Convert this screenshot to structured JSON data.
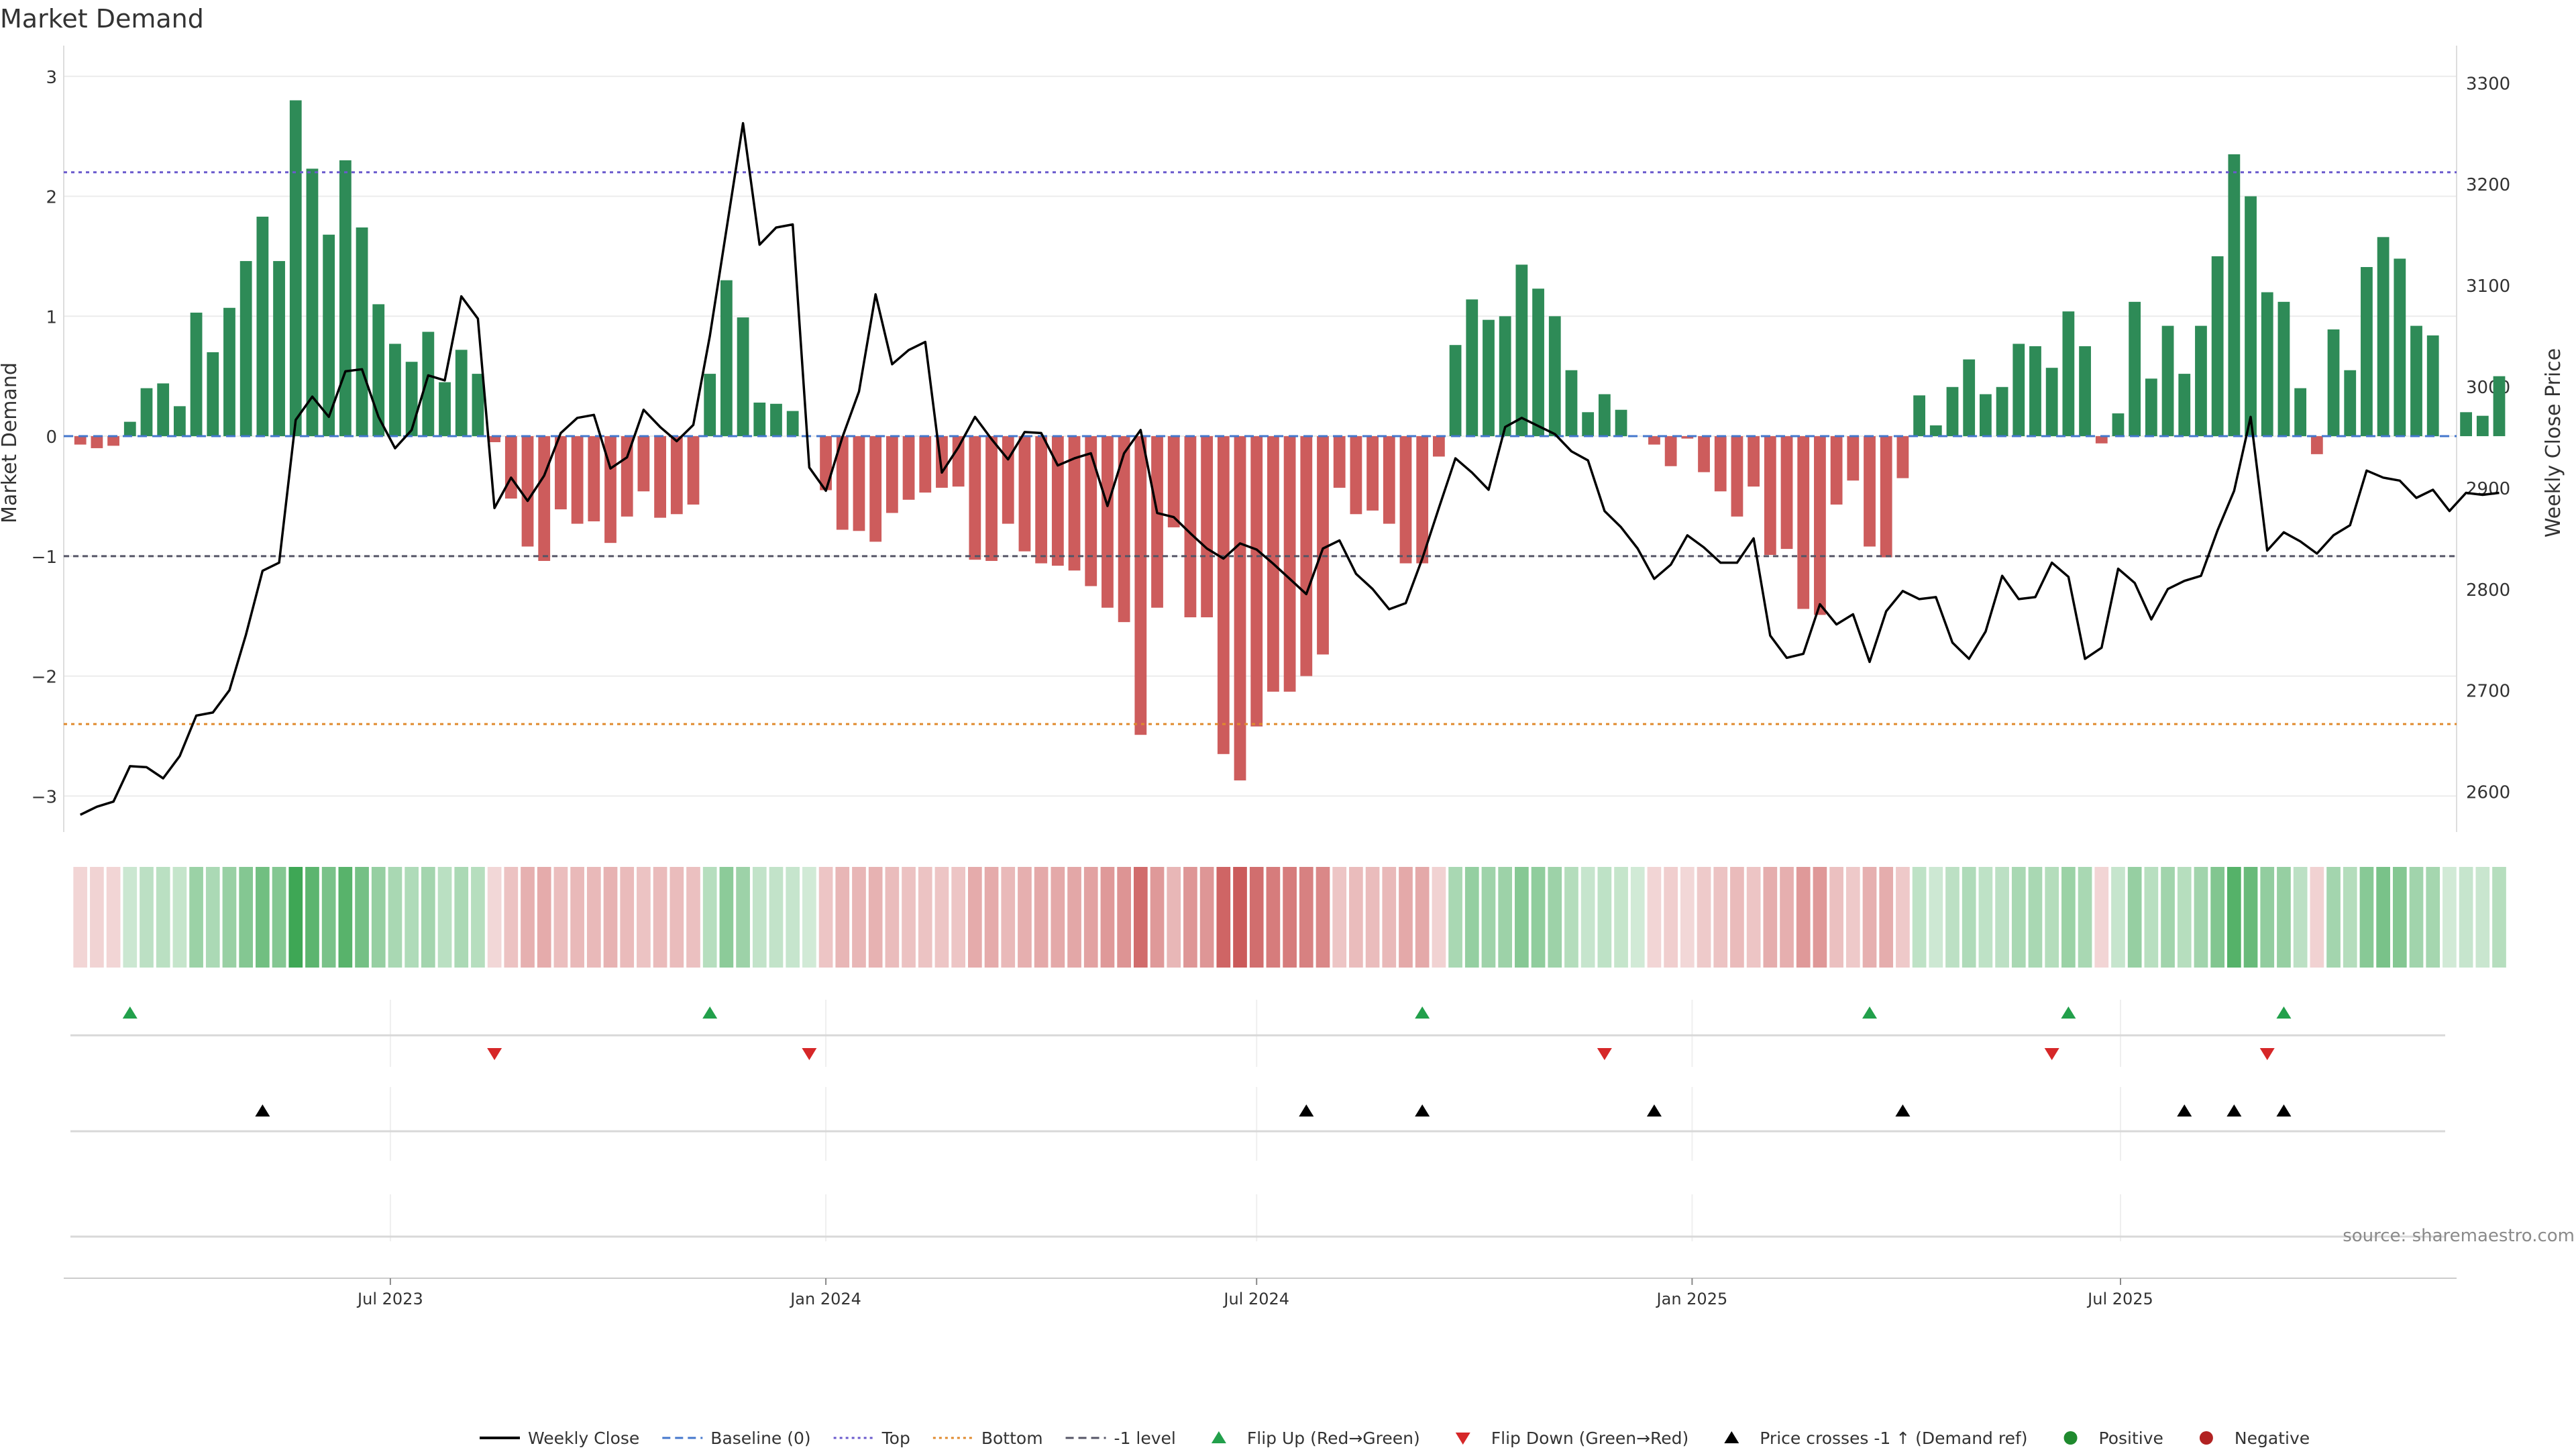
{
  "chart_data": {
    "type": "bar",
    "title": "Market Demand",
    "ylabel": "Market Demand",
    "y2label": "Weekly Close Price",
    "ylim": [
      -3.3,
      3.2
    ],
    "y2lim": [
      2560,
      3330
    ],
    "yticks": [
      -3,
      -2,
      -1,
      0,
      1,
      2,
      3
    ],
    "y2ticks": [
      2600,
      2700,
      2800,
      2900,
      3000,
      3100,
      3200,
      3300
    ],
    "x_start": "2023-02-13",
    "x_end": "2025-11-20",
    "xticks": [
      {
        "label": "Jul 2023",
        "date": "2023-07-01"
      },
      {
        "label": "Jan 2024",
        "date": "2024-01-01"
      },
      {
        "label": "Jul 2024",
        "date": "2024-07-01"
      },
      {
        "label": "Jan 2025",
        "date": "2025-01-01"
      },
      {
        "label": "Jul 2025",
        "date": "2025-07-01"
      }
    ],
    "first_week": "2023-02-20",
    "week_days": 7,
    "demand": [
      -0.07,
      -0.1,
      -0.08,
      0.12,
      0.4,
      0.44,
      0.25,
      1.03,
      0.7,
      1.07,
      1.46,
      1.83,
      1.46,
      2.8,
      2.23,
      1.68,
      2.3,
      1.74,
      1.1,
      0.77,
      0.62,
      0.87,
      0.45,
      0.72,
      0.52,
      -0.05,
      -0.52,
      -0.92,
      -1.04,
      -0.61,
      -0.73,
      -0.71,
      -0.89,
      -0.67,
      -0.46,
      -0.68,
      -0.65,
      -0.57,
      0.52,
      1.3,
      0.99,
      0.28,
      0.27,
      0.21,
      0.0,
      -0.45,
      -0.78,
      -0.79,
      -0.88,
      -0.64,
      -0.53,
      -0.47,
      -0.43,
      -0.42,
      -1.03,
      -1.04,
      -0.73,
      -0.96,
      -1.06,
      -1.08,
      -1.12,
      -1.25,
      -1.43,
      -1.55,
      -2.49,
      -1.43,
      -0.76,
      -1.51,
      -1.51,
      -2.65,
      -2.87,
      -2.42,
      -2.13,
      -2.13,
      -2.0,
      -1.82,
      -0.43,
      -0.65,
      -0.62,
      -0.73,
      -1.06,
      -1.06,
      -0.17,
      0.76,
      1.14,
      0.97,
      1.0,
      1.43,
      1.23,
      1.0,
      0.55,
      0.2,
      0.35,
      0.22,
      0.0,
      -0.07,
      -0.25,
      -0.02,
      -0.3,
      -0.46,
      -0.67,
      -0.42,
      -0.99,
      -0.94,
      -1.44,
      -1.49,
      -0.57,
      -0.37,
      -0.92,
      -1.01,
      -0.35,
      0.34,
      0.09,
      0.41,
      0.64,
      0.35,
      0.41,
      0.77,
      0.75,
      0.57,
      1.04,
      0.75,
      -0.06,
      0.19,
      1.12,
      0.48,
      0.92,
      0.52,
      0.92,
      1.5,
      2.35,
      2.0,
      1.2,
      1.12,
      0.4,
      -0.15,
      0.89,
      0.55,
      1.41,
      1.66,
      1.48,
      0.92,
      0.84,
      0.0,
      0.2,
      0.17,
      0.5
    ],
    "close": [
      2577,
      2585,
      2590,
      2625,
      2624,
      2613,
      2635,
      2675,
      2678,
      2700,
      2755,
      2818,
      2826,
      2967,
      2990,
      2970,
      3015,
      3017,
      2970,
      2939,
      2957,
      3011,
      3006,
      3089,
      3067,
      2880,
      2910,
      2887,
      2912,
      2954,
      2969,
      2972,
      2919,
      2930,
      2977,
      2960,
      2946,
      2962,
      3050,
      3155,
      3260,
      3140,
      3157,
      3160,
      2920,
      2897,
      2950,
      2995,
      3091,
      3022,
      3036,
      3044,
      2915,
      2940,
      2970,
      2948,
      2928,
      2955,
      2954,
      2922,
      2929,
      2934,
      2882,
      2934,
      2957,
      2875,
      2871,
      2855,
      2840,
      2830,
      2845,
      2839,
      2825,
      2810,
      2795,
      2840,
      2848,
      2815,
      2800,
      2780,
      2786,
      2830,
      2880,
      2929,
      2915,
      2898,
      2960,
      2969,
      2961,
      2953,
      2936,
      2927,
      2877,
      2861,
      2840,
      2810,
      2824,
      2853,
      2841,
      2826,
      2826,
      2850,
      2754,
      2732,
      2736,
      2785,
      2765,
      2775,
      2728,
      2778,
      2798,
      2790,
      2792,
      2747,
      2731,
      2758,
      2813,
      2790,
      2792,
      2826,
      2812,
      2731,
      2742,
      2820,
      2806,
      2770,
      2800,
      2808,
      2813,
      2858,
      2897,
      2970,
      2838,
      2856,
      2847,
      2835,
      2853,
      2863,
      2917,
      2910,
      2907,
      2890,
      2898,
      2877,
      2895,
      2893,
      2895
    ],
    "levels": {
      "top": 2.2,
      "bottom": -2.4,
      "minus_one": -1.0
    },
    "flip_up_weeks": [
      3,
      38,
      81,
      108,
      120,
      133
    ],
    "flip_down_weeks": [
      25,
      44,
      92,
      119,
      132
    ],
    "price_cross_weeks": [
      11,
      74,
      81,
      95,
      110,
      127,
      130,
      133
    ],
    "source": "source: sharemaestro.com",
    "colors": {
      "positive_bar": "#2e8b57",
      "negative_bar": "#cd5c5c",
      "close_line": "#000000",
      "baseline": "#4477cc",
      "top": "#6a5acd",
      "bottom": "#e08a2e",
      "minus_one": "#555566",
      "flip_up": "#22a04b",
      "flip_down": "#d62728",
      "price_cross": "#000000",
      "positive_dot": "#1f8a2e",
      "negative_dot": "#b22222"
    },
    "legend": [
      {
        "label": "Weekly Close",
        "kind": "line",
        "color": "#000000"
      },
      {
        "label": "Baseline (0)",
        "kind": "dash",
        "color": "#4477cc"
      },
      {
        "label": "Top",
        "kind": "dot",
        "color": "#6a5acd"
      },
      {
        "label": "Bottom",
        "kind": "dot",
        "color": "#e08a2e"
      },
      {
        "label": "-1 level",
        "kind": "dash",
        "color": "#555566"
      },
      {
        "label": "Flip Up (Red→Green)",
        "kind": "up",
        "color": "#22a04b"
      },
      {
        "label": "Flip Down (Green→Red)",
        "kind": "down",
        "color": "#d62728"
      },
      {
        "label": "Price crosses -1 ↑ (Demand ref)",
        "kind": "up",
        "color": "#000000"
      },
      {
        "label": "Positive",
        "kind": "circle",
        "color": "#1f8a2e"
      },
      {
        "label": "Negative",
        "kind": "circle",
        "color": "#b22222"
      }
    ],
    "legend_position": "bottom-center"
  }
}
